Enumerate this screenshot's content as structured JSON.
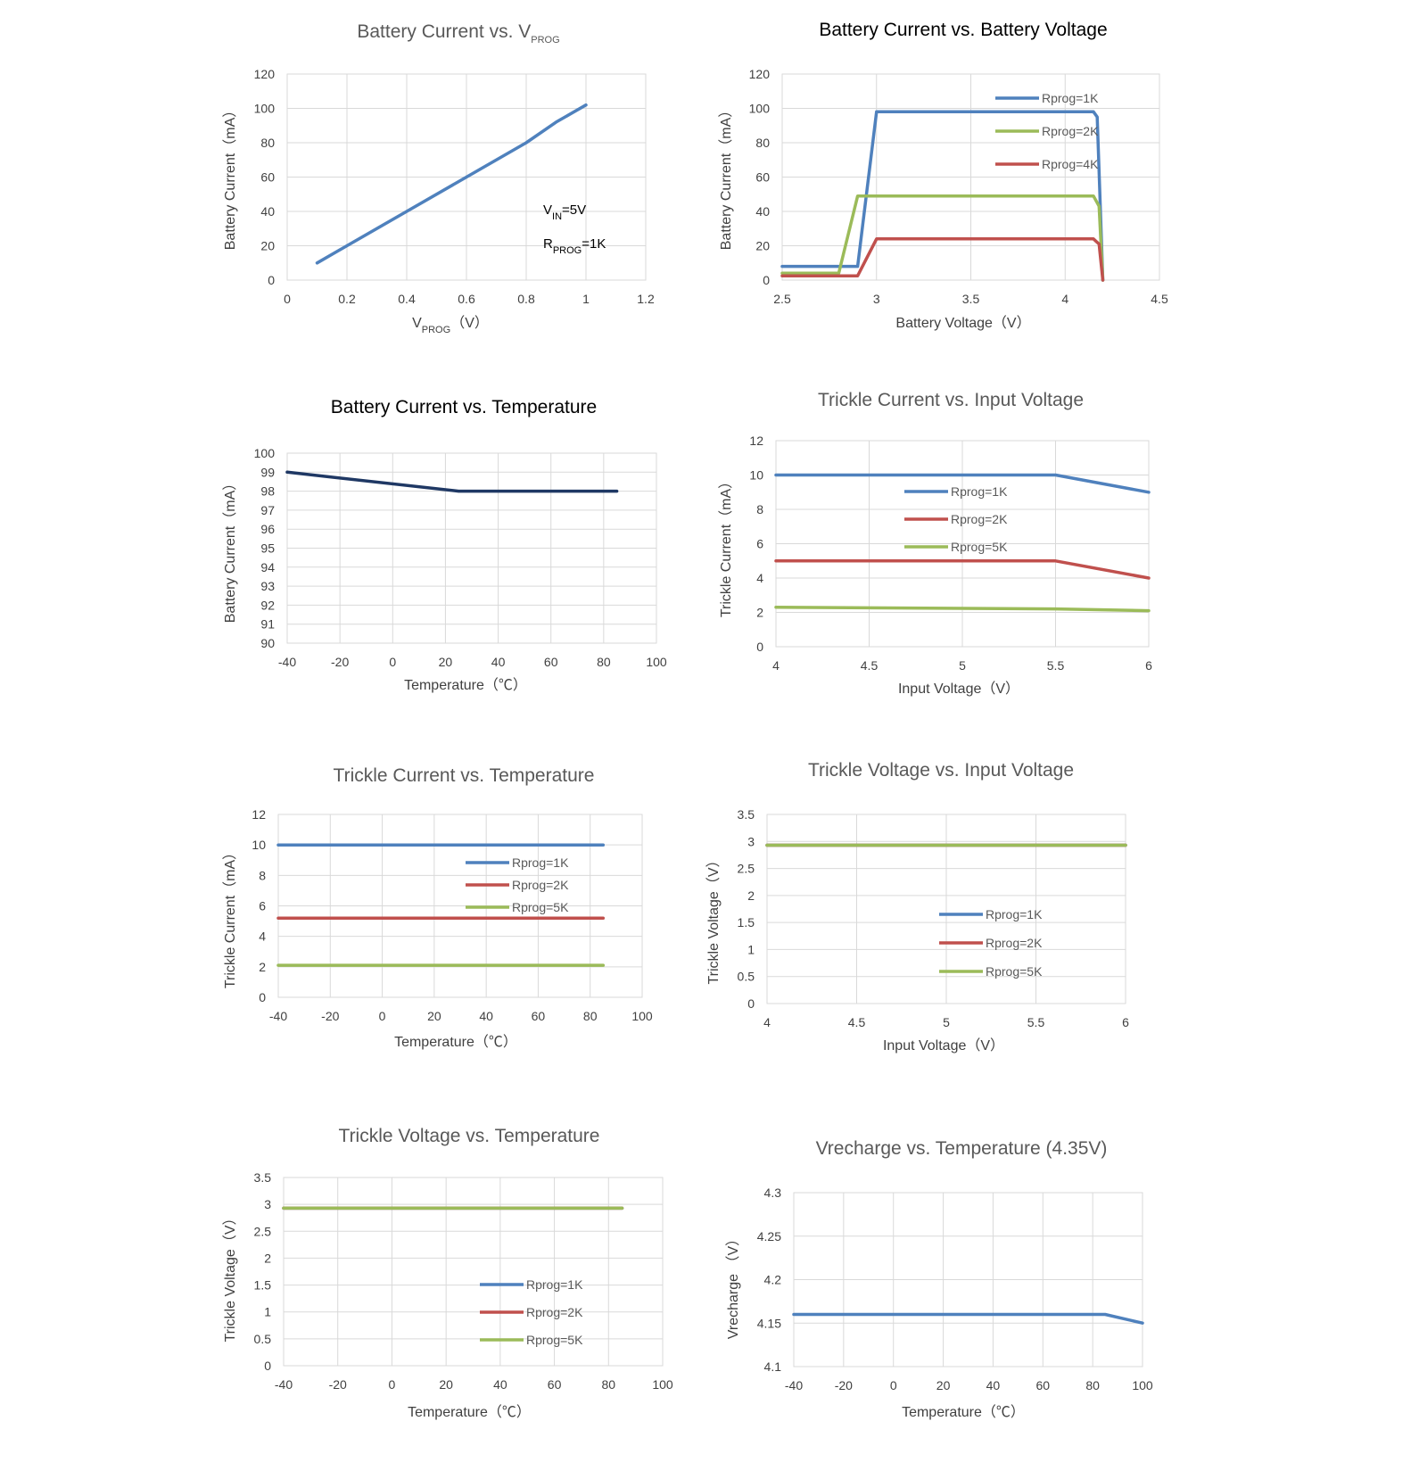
{
  "chart_data": [
    {
      "id": "c1",
      "type": "line",
      "title": "Battery Current vs. V",
      "title_sub": "PROG",
      "xlabel": "V",
      "xlabel_sub": "PROG",
      "xlabel_suffix": "（V）",
      "ylabel": "Battery Current（mA）",
      "xlim": [
        0,
        1.2
      ],
      "ylim": [
        0,
        120
      ],
      "xticks": [
        "0",
        "0.2",
        "0.4",
        "0.6",
        "0.8",
        "1",
        "1.2"
      ],
      "yticks": [
        "0",
        "20",
        "40",
        "60",
        "80",
        "100",
        "120"
      ],
      "grid": true,
      "annotations": [
        {
          "text": "V",
          "sub": "IN",
          "suffix": "=5V"
        },
        {
          "text": "R",
          "sub": "PROG",
          "suffix": "=1K"
        }
      ],
      "series": [
        {
          "color": "#4f81bd",
          "points": [
            [
              0.1,
              10
            ],
            [
              0.2,
              20
            ],
            [
              0.4,
              40
            ],
            [
              0.6,
              60
            ],
            [
              0.8,
              80
            ],
            [
              0.9,
              92
            ],
            [
              1.0,
              102
            ]
          ]
        }
      ]
    },
    {
      "id": "c2",
      "type": "line",
      "title": "Battery Current vs. Battery Voltage",
      "xlabel": "Battery Voltage（V）",
      "ylabel": "Battery Current（mA）",
      "xlim": [
        2.5,
        4.5
      ],
      "ylim": [
        0,
        120
      ],
      "xticks": [
        "2.5",
        "3",
        "3.5",
        "4",
        "4.5"
      ],
      "yticks": [
        "0",
        "20",
        "40",
        "60",
        "80",
        "100",
        "120"
      ],
      "grid": true,
      "legend": "top-right",
      "series": [
        {
          "name": "Rprog=1K",
          "color": "#4f81bd",
          "points": [
            [
              2.5,
              8
            ],
            [
              2.9,
              8
            ],
            [
              3.0,
              98
            ],
            [
              4.15,
              98
            ],
            [
              4.17,
              95
            ],
            [
              4.2,
              0
            ]
          ]
        },
        {
          "name": "Rprog=2K",
          "color": "#9bbb59",
          "points": [
            [
              2.5,
              4
            ],
            [
              2.8,
              4
            ],
            [
              2.9,
              49
            ],
            [
              4.15,
              49
            ],
            [
              4.18,
              43
            ],
            [
              4.2,
              0
            ]
          ]
        },
        {
          "name": "Rprog=4K",
          "color": "#c0504d",
          "points": [
            [
              2.5,
              2.5
            ],
            [
              2.9,
              2.5
            ],
            [
              3.0,
              24
            ],
            [
              4.15,
              24
            ],
            [
              4.18,
              21
            ],
            [
              4.2,
              0
            ]
          ]
        }
      ]
    },
    {
      "id": "c3",
      "type": "line",
      "title": "Battery Current vs. Temperature",
      "xlabel": "Temperature（℃）",
      "ylabel": "Battery Current（mA）",
      "xlim": [
        -40,
        100
      ],
      "ylim": [
        90,
        100
      ],
      "xticks": [
        "-40",
        "-20",
        "0",
        "20",
        "40",
        "60",
        "80",
        "100"
      ],
      "yticks": [
        "90",
        "91",
        "92",
        "93",
        "94",
        "95",
        "96",
        "97",
        "98",
        "99",
        "100"
      ],
      "grid": true,
      "series": [
        {
          "color": "#1f3864",
          "points": [
            [
              -40,
              99
            ],
            [
              25,
              98
            ],
            [
              85,
              98
            ]
          ]
        }
      ]
    },
    {
      "id": "c4",
      "type": "line",
      "title": "Trickle Current vs. Input Voltage",
      "xlabel": "Input Voltage（V）",
      "ylabel": "Trickle Current（mA）",
      "xlim": [
        4,
        6
      ],
      "ylim": [
        0,
        12
      ],
      "xticks": [
        "4",
        "4.5",
        "5",
        "5.5",
        "6"
      ],
      "yticks": [
        "0",
        "2",
        "4",
        "6",
        "8",
        "10",
        "12"
      ],
      "grid": true,
      "legend": "center-right",
      "series": [
        {
          "name": "Rprog=1K",
          "color": "#4f81bd",
          "points": [
            [
              4,
              10
            ],
            [
              5.5,
              10
            ],
            [
              6,
              9
            ]
          ]
        },
        {
          "name": "Rprog=2K",
          "color": "#c0504d",
          "points": [
            [
              4,
              5
            ],
            [
              5.5,
              5
            ],
            [
              6,
              4
            ]
          ]
        },
        {
          "name": "Rprog=5K",
          "color": "#9bbb59",
          "points": [
            [
              4,
              2.3
            ],
            [
              5.5,
              2.2
            ],
            [
              6,
              2.1
            ]
          ]
        }
      ]
    },
    {
      "id": "c5",
      "type": "line",
      "title": "Trickle Current vs. Temperature",
      "xlabel": "Temperature（℃）",
      "ylabel": "Trickle Current（mA）",
      "xlim": [
        -40,
        100
      ],
      "ylim": [
        0,
        12
      ],
      "xticks": [
        "-40",
        "-20",
        "0",
        "20",
        "40",
        "60",
        "80",
        "100"
      ],
      "yticks": [
        "0",
        "2",
        "4",
        "6",
        "8",
        "10",
        "12"
      ],
      "grid": true,
      "legend": "center-right",
      "series": [
        {
          "name": "Rprog=1K",
          "color": "#4f81bd",
          "points": [
            [
              -40,
              10
            ],
            [
              85,
              10
            ]
          ]
        },
        {
          "name": "Rprog=2K",
          "color": "#c0504d",
          "points": [
            [
              -40,
              5.2
            ],
            [
              85,
              5.2
            ]
          ]
        },
        {
          "name": "Rprog=5K",
          "color": "#9bbb59",
          "points": [
            [
              -40,
              2.1
            ],
            [
              85,
              2.1
            ]
          ]
        }
      ]
    },
    {
      "id": "c6",
      "type": "line",
      "title": "Trickle Voltage vs. Input Voltage",
      "xlabel": "Input Voltage（V）",
      "ylabel": "Trickle Voltage（V）",
      "xlim": [
        4,
        6
      ],
      "ylim": [
        0,
        3.5
      ],
      "xticks": [
        "4",
        "4.5",
        "5",
        "5.5",
        "6"
      ],
      "yticks": [
        "0",
        "0.5",
        "1",
        "1.5",
        "2",
        "2.5",
        "3",
        "3.5"
      ],
      "grid": true,
      "legend": "bottom-right",
      "series": [
        {
          "name": "Rprog=1K",
          "color": "#4f81bd",
          "points": [
            [
              4,
              2.93
            ],
            [
              6,
              2.93
            ]
          ]
        },
        {
          "name": "Rprog=2K",
          "color": "#c0504d",
          "points": [
            [
              4,
              2.93
            ],
            [
              6,
              2.93
            ]
          ]
        },
        {
          "name": "Rprog=5K",
          "color": "#9bbb59",
          "points": [
            [
              4,
              2.93
            ],
            [
              6,
              2.93
            ]
          ]
        }
      ]
    },
    {
      "id": "c7",
      "type": "line",
      "title": "Trickle Voltage vs. Temperature",
      "xlabel": "Temperature（℃）",
      "ylabel": "Trickle Voltage（V）",
      "xlim": [
        -40,
        100
      ],
      "ylim": [
        0,
        3.5
      ],
      "xticks": [
        "-40",
        "-20",
        "0",
        "20",
        "40",
        "60",
        "80",
        "100"
      ],
      "yticks": [
        "0",
        "0.5",
        "1",
        "1.5",
        "2",
        "2.5",
        "3",
        "3.5"
      ],
      "grid": true,
      "legend": "bottom-right",
      "series": [
        {
          "name": "Rprog=1K",
          "color": "#4f81bd",
          "points": [
            [
              -40,
              2.93
            ],
            [
              85,
              2.93
            ]
          ]
        },
        {
          "name": "Rprog=2K",
          "color": "#c0504d",
          "points": [
            [
              -40,
              2.93
            ],
            [
              85,
              2.93
            ]
          ]
        },
        {
          "name": "Rprog=5K",
          "color": "#9bbb59",
          "points": [
            [
              -40,
              2.93
            ],
            [
              85,
              2.93
            ]
          ]
        }
      ]
    },
    {
      "id": "c8",
      "type": "line",
      "title": "Vrecharge vs. Temperature (4.35V)",
      "xlabel": "Temperature（℃）",
      "ylabel": "Vrecharge （V）",
      "xlim": [
        -40,
        100
      ],
      "ylim": [
        4.1,
        4.3
      ],
      "xticks": [
        "-40",
        "-20",
        "0",
        "20",
        "40",
        "60",
        "80",
        "100"
      ],
      "yticks": [
        "4.1",
        "4.15",
        "4.2",
        "4.25",
        "4.3"
      ],
      "grid": true,
      "series": [
        {
          "color": "#4f81bd",
          "points": [
            [
              -40,
              4.16
            ],
            [
              85,
              4.16
            ],
            [
              100,
              4.15
            ]
          ]
        }
      ]
    }
  ]
}
